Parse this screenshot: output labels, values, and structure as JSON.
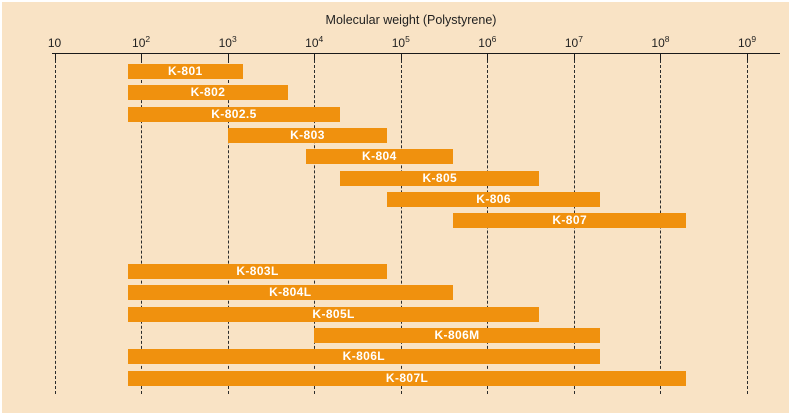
{
  "chart_data": {
    "type": "bar",
    "subtype": "horizontal-log-range-bars",
    "title": "Molecular weight (Polystyrene)",
    "x_axis": {
      "label": "Molecular weight (Polystyrene)",
      "scale": "log10",
      "min": 10,
      "max": 1000000000,
      "ticks": [
        {
          "base": "10",
          "exp": ""
        },
        {
          "base": "10",
          "exp": "2"
        },
        {
          "base": "10",
          "exp": "3"
        },
        {
          "base": "10",
          "exp": "4"
        },
        {
          "base": "10",
          "exp": "5"
        },
        {
          "base": "10",
          "exp": "6"
        },
        {
          "base": "10",
          "exp": "7"
        },
        {
          "base": "10",
          "exp": "8"
        },
        {
          "base": "10",
          "exp": "9"
        }
      ],
      "gridlines": "dashed-vertical-per-decade"
    },
    "groups": [
      {
        "bars": [
          {
            "label": "K-801",
            "range": [
              70,
              1500
            ]
          },
          {
            "label": "K-802",
            "range": [
              70,
              5000
            ]
          },
          {
            "label": "K-802.5",
            "range": [
              70,
              20000
            ]
          },
          {
            "label": "K-803",
            "range": [
              1000,
              70000
            ]
          },
          {
            "label": "K-804",
            "range": [
              8000,
              400000
            ]
          },
          {
            "label": "K-805",
            "range": [
              20000,
              4000000
            ]
          },
          {
            "label": "K-806",
            "range": [
              70000,
              20000000
            ]
          },
          {
            "label": "K-807",
            "range": [
              400000,
              200000000
            ]
          }
        ]
      },
      {
        "bars": [
          {
            "label": "K-803L",
            "range": [
              70,
              70000
            ]
          },
          {
            "label": "K-804L",
            "range": [
              70,
              400000
            ]
          },
          {
            "label": "K-805L",
            "range": [
              70,
              4000000
            ]
          },
          {
            "label": "K-806M",
            "range": [
              10000,
              20000000
            ]
          },
          {
            "label": "K-806L",
            "range": [
              70,
              20000000
            ]
          },
          {
            "label": "K-807L",
            "range": [
              70,
              200000000
            ]
          }
        ]
      }
    ],
    "legend": "none"
  },
  "colors": {
    "background": "#f9e3c5",
    "bar": "#f0910e",
    "bar_label": "#ffffff",
    "axis": "#1a1a1a",
    "gridline": "#2b2b2b"
  }
}
